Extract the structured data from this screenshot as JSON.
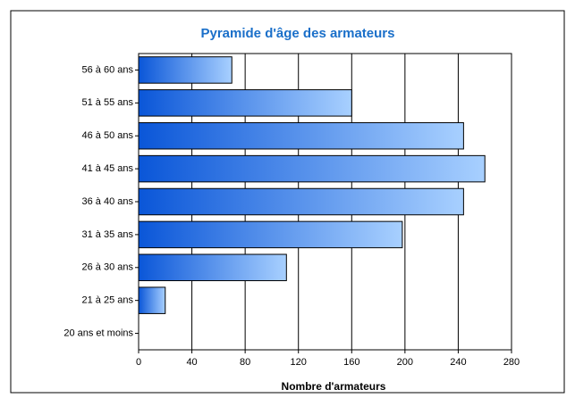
{
  "chart_data": {
    "type": "bar",
    "orientation": "horizontal",
    "title": "Pyramide d'âge des armateurs",
    "x_label": "Nombre d'armateurs",
    "categories": [
      "56 à 60 ans",
      "51 à 55 ans",
      "46 à 50 ans",
      "41 à 45 ans",
      "36 à 40 ans",
      "31 à 35 ans",
      "26 à 30 ans",
      "21 à 25 ans",
      "20 ans et moins"
    ],
    "values": [
      70,
      160,
      244,
      260,
      244,
      198,
      111,
      20,
      0
    ],
    "color": "#0a56d8",
    "title_color": "#1a6fc9",
    "xlim": [
      0,
      280
    ],
    "xticks": [
      0,
      40,
      80,
      120,
      160,
      200,
      240,
      280
    ],
    "grid": true
  }
}
